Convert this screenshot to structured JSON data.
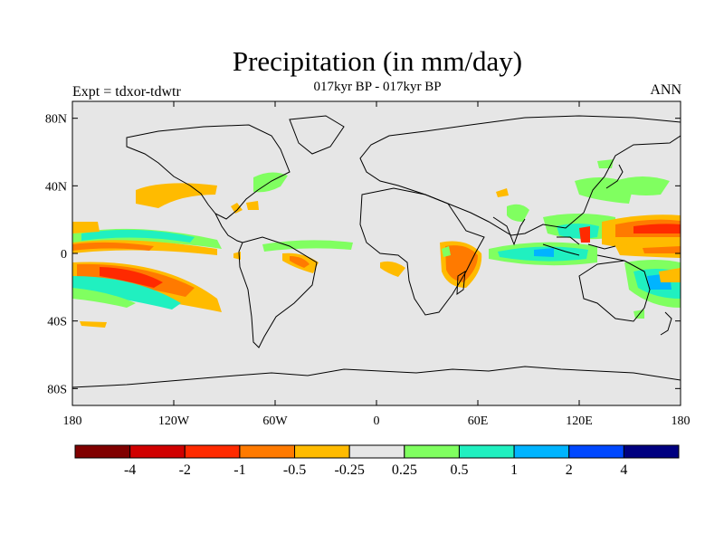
{
  "title": "Precipitation (in mm/day)",
  "subtitle": "017kyr BP - 017kyr BP",
  "left_label": "Expt = tdxor-tdwtr",
  "right_label": "ANN",
  "lat_ticks": [
    {
      "value": 80,
      "label": "80N"
    },
    {
      "value": 40,
      "label": "40N"
    },
    {
      "value": 0,
      "label": "0"
    },
    {
      "value": -40,
      "label": "40S"
    },
    {
      "value": -80,
      "label": "80S"
    }
  ],
  "lon_ticks": [
    {
      "value": -180,
      "label": "180"
    },
    {
      "value": -120,
      "label": "120W"
    },
    {
      "value": -60,
      "label": "60W"
    },
    {
      "value": 0,
      "label": "0"
    },
    {
      "value": 60,
      "label": "60E"
    },
    {
      "value": 120,
      "label": "120E"
    },
    {
      "value": 180,
      "label": "180"
    }
  ],
  "colorbar": {
    "colors": [
      "#800000",
      "#d00000",
      "#ff2a00",
      "#ff7a00",
      "#ffbb00",
      "#e6e6e6",
      "#80ff60",
      "#20f0c0",
      "#00b4ff",
      "#0048ff",
      "#000080"
    ],
    "labels": [
      "-4",
      "-2",
      "-1",
      "-0.5",
      "-0.25",
      "0.25",
      "0.5",
      "1",
      "2",
      "4"
    ]
  },
  "colors": {
    "ocean": "#e6e6e6",
    "coast": "#000000"
  }
}
